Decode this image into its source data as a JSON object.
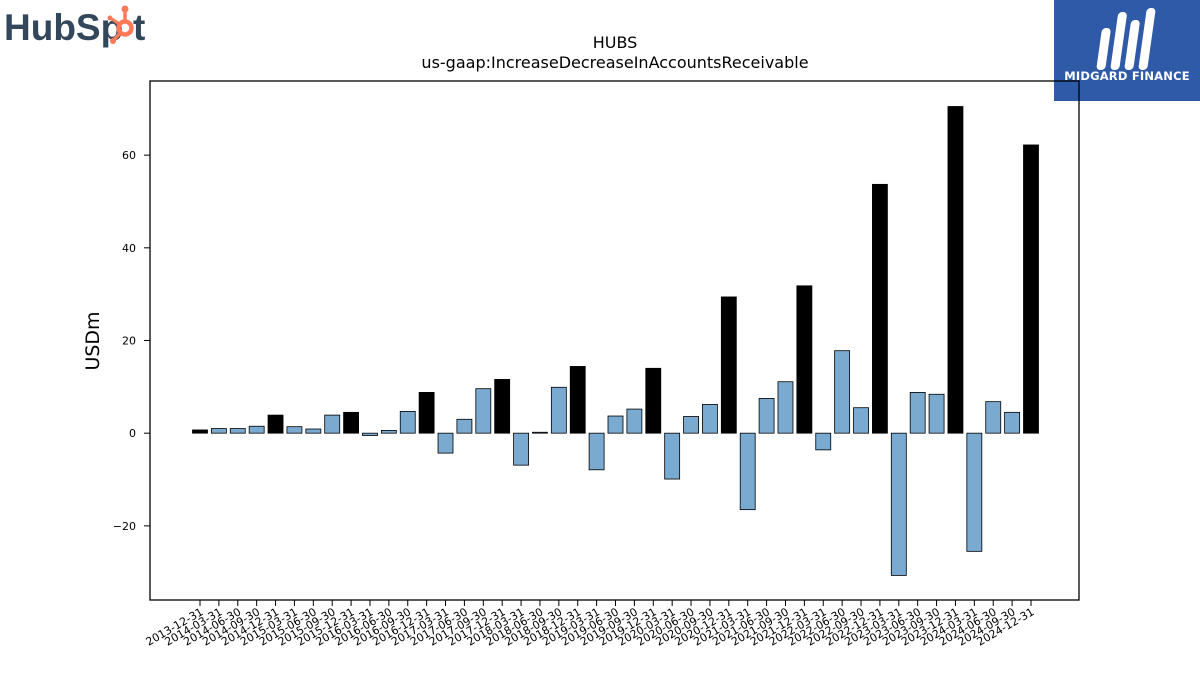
{
  "logos": {
    "left_brand": "HubSpot",
    "right_brand": "MIDGARD FINANCE",
    "left_accent_color": "#ff7a59",
    "left_text_color": "#33475b",
    "right_bg_color": "#2f5aa8"
  },
  "chart_data": {
    "type": "bar",
    "title": "HUBS",
    "subtitle": "us-gaap:IncreaseDecreaseInAccountsReceivable",
    "xlabel": "",
    "ylabel": "USDm",
    "ylim": [
      -36,
      76
    ],
    "yticks": [
      -20,
      0,
      20,
      40,
      60
    ],
    "grid": false,
    "colors": {
      "quarter": "#7aaad0",
      "annual": "#000000"
    },
    "categories": [
      "2013-12-31",
      "2014-03-31",
      "2014-06-30",
      "2014-09-30",
      "2014-12-31",
      "2015-03-31",
      "2015-06-30",
      "2015-09-30",
      "2015-12-31",
      "2016-03-31",
      "2016-06-30",
      "2016-09-30",
      "2016-12-31",
      "2017-03-31",
      "2017-06-30",
      "2017-09-30",
      "2017-12-31",
      "2018-03-31",
      "2018-06-30",
      "2018-09-30",
      "2018-12-31",
      "2019-03-31",
      "2019-06-30",
      "2019-09-30",
      "2019-12-31",
      "2020-03-31",
      "2020-06-30",
      "2020-09-30",
      "2020-12-31",
      "2021-03-31",
      "2021-06-30",
      "2021-09-30",
      "2021-12-31",
      "2022-03-31",
      "2022-06-30",
      "2022-09-30",
      "2022-12-31",
      "2023-03-31",
      "2023-06-30",
      "2023-09-30",
      "2023-12-31",
      "2024-03-31",
      "2024-06-30",
      "2024-09-30",
      "2024-12-31"
    ],
    "values": [
      0.7,
      1.0,
      1.0,
      1.5,
      3.9,
      1.4,
      0.9,
      3.9,
      4.5,
      -0.5,
      0.6,
      4.7,
      8.8,
      -4.3,
      3.0,
      9.6,
      11.6,
      -6.9,
      0.2,
      9.9,
      14.4,
      -7.9,
      3.7,
      5.2,
      14.0,
      -9.9,
      3.6,
      6.2,
      29.4,
      -16.5,
      7.5,
      11.1,
      31.8,
      -3.6,
      17.8,
      5.5,
      53.7,
      -30.7,
      8.8,
      8.4,
      70.5,
      -25.5,
      6.8,
      4.5,
      62.2
    ],
    "annual_flags": [
      1,
      0,
      0,
      0,
      1,
      0,
      0,
      0,
      1,
      0,
      0,
      0,
      1,
      0,
      0,
      0,
      1,
      0,
      0,
      0,
      1,
      0,
      0,
      0,
      1,
      0,
      0,
      0,
      1,
      0,
      0,
      0,
      1,
      0,
      0,
      0,
      1,
      0,
      0,
      0,
      1,
      0,
      0,
      0,
      1
    ]
  }
}
